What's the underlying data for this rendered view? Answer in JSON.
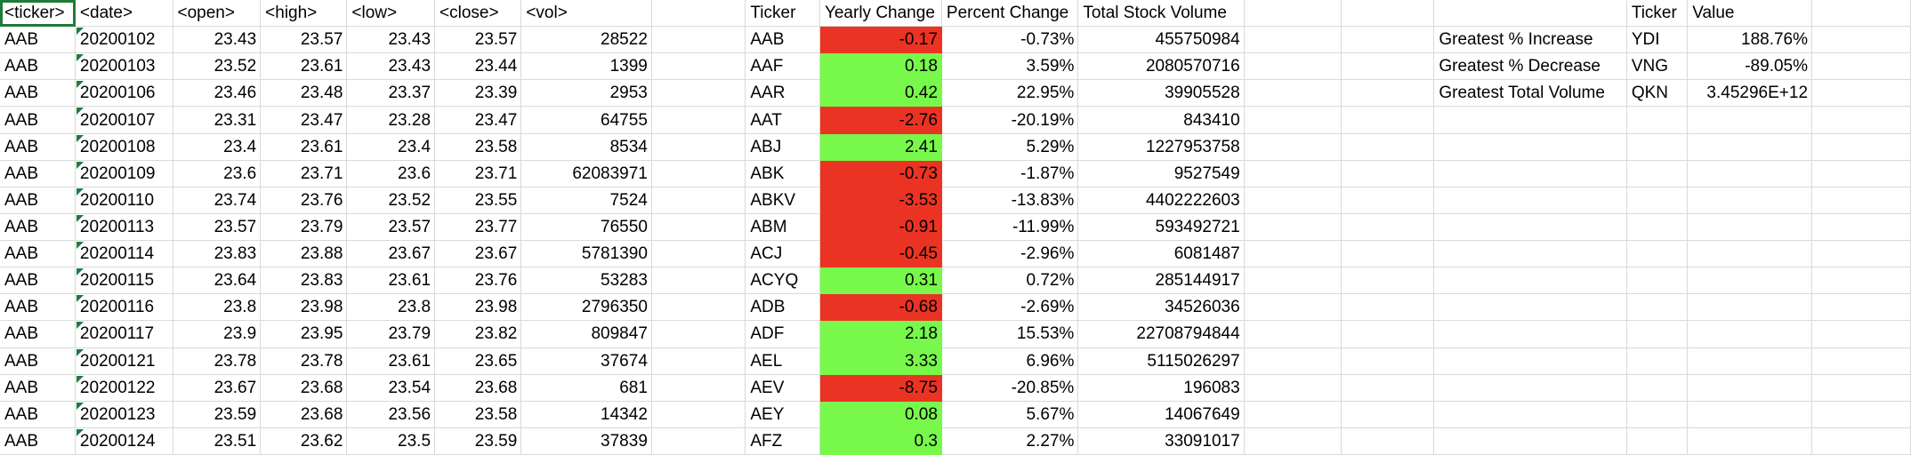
{
  "headers": [
    "<ticker>",
    "<date>",
    "<open>",
    "<high>",
    "<low>",
    "<close>",
    "<vol>"
  ],
  "rows": [
    [
      "AAB",
      "20200102",
      "23.43",
      "23.57",
      "23.43",
      "23.57",
      "28522"
    ],
    [
      "AAB",
      "20200103",
      "23.52",
      "23.61",
      "23.43",
      "23.44",
      "1399"
    ],
    [
      "AAB",
      "20200106",
      "23.46",
      "23.48",
      "23.37",
      "23.39",
      "2953"
    ],
    [
      "AAB",
      "20200107",
      "23.31",
      "23.47",
      "23.28",
      "23.47",
      "64755"
    ],
    [
      "AAB",
      "20200108",
      "23.4",
      "23.61",
      "23.4",
      "23.58",
      "8534"
    ],
    [
      "AAB",
      "20200109",
      "23.6",
      "23.71",
      "23.6",
      "23.71",
      "62083971"
    ],
    [
      "AAB",
      "20200110",
      "23.74",
      "23.76",
      "23.52",
      "23.55",
      "7524"
    ],
    [
      "AAB",
      "20200113",
      "23.57",
      "23.79",
      "23.57",
      "23.77",
      "76550"
    ],
    [
      "AAB",
      "20200114",
      "23.83",
      "23.88",
      "23.67",
      "23.67",
      "5781390"
    ],
    [
      "AAB",
      "20200115",
      "23.64",
      "23.83",
      "23.61",
      "23.76",
      "53283"
    ],
    [
      "AAB",
      "20200116",
      "23.8",
      "23.98",
      "23.8",
      "23.98",
      "2796350"
    ],
    [
      "AAB",
      "20200117",
      "23.9",
      "23.95",
      "23.79",
      "23.82",
      "809847"
    ],
    [
      "AAB",
      "20200121",
      "23.78",
      "23.78",
      "23.61",
      "23.65",
      "37674"
    ],
    [
      "AAB",
      "20200122",
      "23.67",
      "23.68",
      "23.54",
      "23.68",
      "681"
    ],
    [
      "AAB",
      "20200123",
      "23.59",
      "23.68",
      "23.56",
      "23.58",
      "14342"
    ],
    [
      "AAB",
      "20200124",
      "23.51",
      "23.62",
      "23.5",
      "23.59",
      "37839"
    ]
  ],
  "summary_headers": [
    "Ticker",
    "Yearly Change",
    "Percent Change",
    "Total Stock Volume"
  ],
  "summary_rows": [
    [
      "AAB",
      "-0.17",
      "-0.73%",
      "455750984"
    ],
    [
      "AAF",
      "0.18",
      "3.59%",
      "2080570716"
    ],
    [
      "AAR",
      "0.42",
      "22.95%",
      "39905528"
    ],
    [
      "AAT",
      "-2.76",
      "-20.19%",
      "843410"
    ],
    [
      "ABJ",
      "2.41",
      "5.29%",
      "1227953758"
    ],
    [
      "ABK",
      "-0.73",
      "-1.87%",
      "9527549"
    ],
    [
      "ABKV",
      "-3.53",
      "-13.83%",
      "4402222603"
    ],
    [
      "ABM",
      "-0.91",
      "-11.99%",
      "593492721"
    ],
    [
      "ACJ",
      "-0.45",
      "-2.96%",
      "6081487"
    ],
    [
      "ACYQ",
      "0.31",
      "0.72%",
      "285144917"
    ],
    [
      "ADB",
      "-0.68",
      "-2.69%",
      "34526036"
    ],
    [
      "ADF",
      "2.18",
      "15.53%",
      "22708794844"
    ],
    [
      "AEL",
      "3.33",
      "6.96%",
      "5115026297"
    ],
    [
      "AEV",
      "-8.75",
      "-20.85%",
      "196083"
    ],
    [
      "AEY",
      "0.08",
      "5.67%",
      "14067649"
    ],
    [
      "AFZ",
      "0.3",
      "2.27%",
      "33091017"
    ]
  ],
  "stats_headers": [
    "Ticker",
    "Value"
  ],
  "stats_rows": [
    [
      "Greatest % Increase",
      "YDI",
      "188.76%"
    ],
    [
      "Greatest % Decrease",
      "VNG",
      "-89.05%"
    ],
    [
      "Greatest Total Volume",
      "QKN",
      "3.45296E+12"
    ]
  ],
  "colors": {
    "positive": "#77f84a",
    "negative": "#eb3323"
  }
}
